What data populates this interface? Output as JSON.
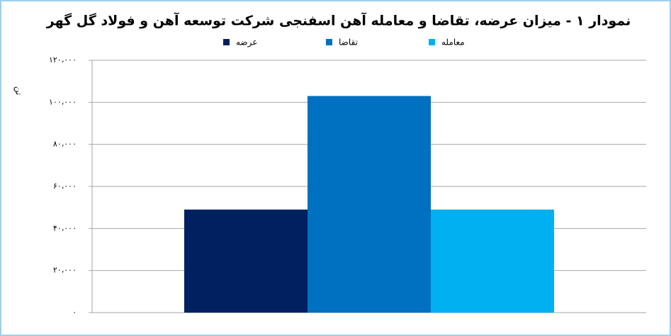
{
  "chart_data": {
    "type": "bar",
    "title": "نمودار ۱ - میزان عرضه، تقاضا و معامله آهن اسفنجی شرکت توسعه آهن و فولاد گل گهر",
    "y_label": "تن",
    "categories": [
      null
    ],
    "series": [
      {
        "name": "عرضه",
        "color": "#002060",
        "values": [
          49000
        ]
      },
      {
        "name": "تقاضا",
        "color": "#0070c0",
        "values": [
          103000
        ]
      },
      {
        "name": "معامله",
        "color": "#00b0f0",
        "values": [
          49000
        ]
      }
    ],
    "ylim": [
      0,
      120000
    ],
    "yticks": [
      {
        "value": 0,
        "label": "۰"
      },
      {
        "value": 20000,
        "label": "۲۰،۰۰۰"
      },
      {
        "value": 40000,
        "label": "۴۰،۰۰۰"
      },
      {
        "value": 60000,
        "label": "۶۰،۰۰۰"
      },
      {
        "value": 80000,
        "label": "۸۰،۰۰۰"
      },
      {
        "value": 100000,
        "label": "۱۰۰،۰۰۰"
      },
      {
        "value": 120000,
        "label": "۱۲۰،۰۰۰"
      }
    ],
    "grid": true
  }
}
